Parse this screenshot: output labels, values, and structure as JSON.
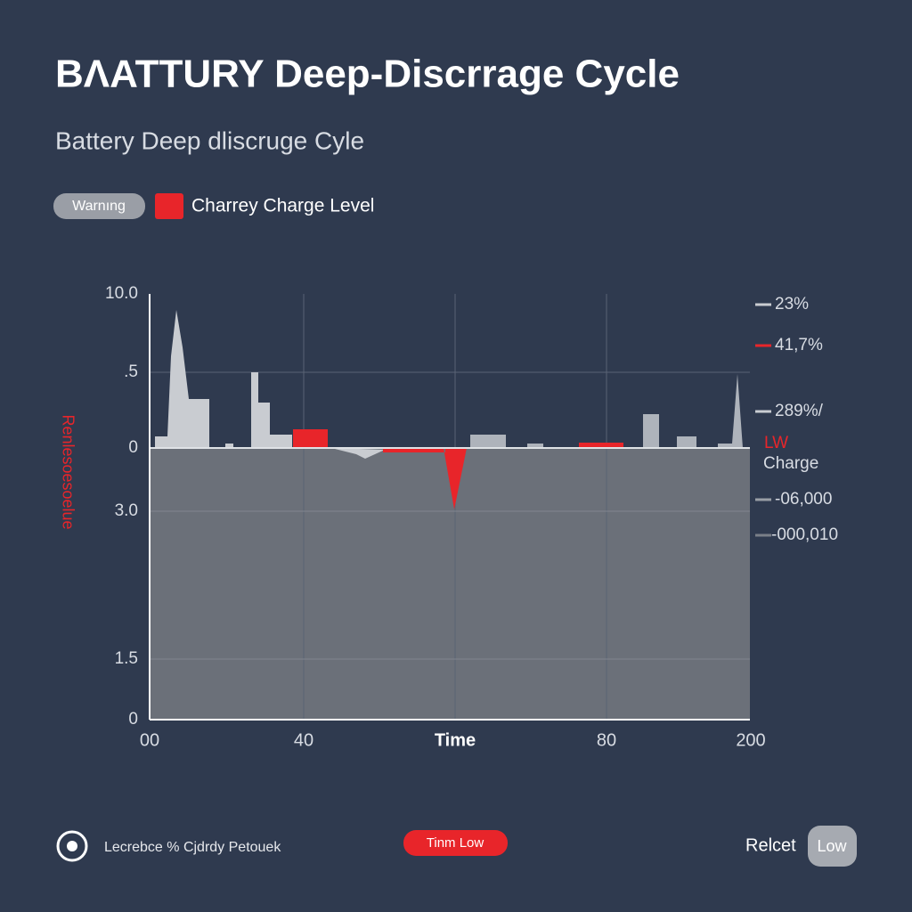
{
  "header": {
    "title": "BΛATTURY Deep-Discrrage Cycle",
    "subtitle": "Battery Deep dliscruge Cyle"
  },
  "legend": {
    "warning": "Warnıng",
    "series": "Charrey Charge Level"
  },
  "chart": {
    "y_axis_title": "Renlesoesoelue",
    "y_labels": [
      "10.0",
      ".5",
      "0",
      "3.0",
      "1.5",
      "0"
    ],
    "x_labels": [
      "00",
      "40",
      "Time",
      "80",
      "200"
    ],
    "right_labels": [
      "23%",
      "41,7%",
      "289%/",
      "LW",
      "Charge",
      "-06,000",
      "-000,010"
    ]
  },
  "footer": {
    "info": "Lecrebce % Cjdrdy Petouek",
    "alert": "Tinm Low",
    "action": "Relcet",
    "button": "Low"
  }
}
